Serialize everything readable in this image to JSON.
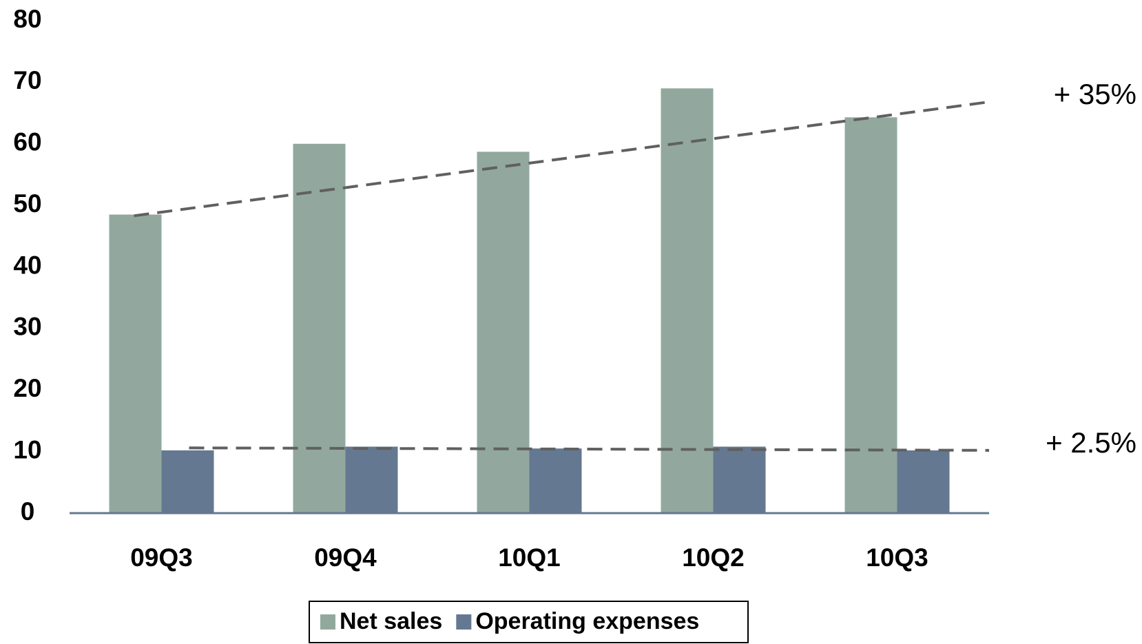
{
  "chart_data": {
    "type": "bar",
    "categories": [
      "09Q3",
      "09Q4",
      "10Q1",
      "10Q2",
      "10Q3"
    ],
    "series": [
      {
        "name": "Net sales",
        "color": "#92a89e",
        "values": [
          48.5,
          60,
          58.7,
          69,
          64.3
        ]
      },
      {
        "name": "Operating expenses",
        "color": "#647891",
        "values": [
          10.2,
          10.8,
          10.5,
          10.8,
          10.2
        ]
      }
    ],
    "ylim": [
      0,
      80
    ],
    "yticks": [
      0,
      10,
      20,
      30,
      40,
      50,
      60,
      70,
      80
    ],
    "grid": false,
    "legend": "bottom",
    "trend_lines": [
      {
        "label": "+ 35%",
        "values": [
          48.3,
          66.8
        ]
      },
      {
        "label": "+ 2.5%",
        "values": [
          10.6,
          10.2
        ]
      }
    ]
  }
}
